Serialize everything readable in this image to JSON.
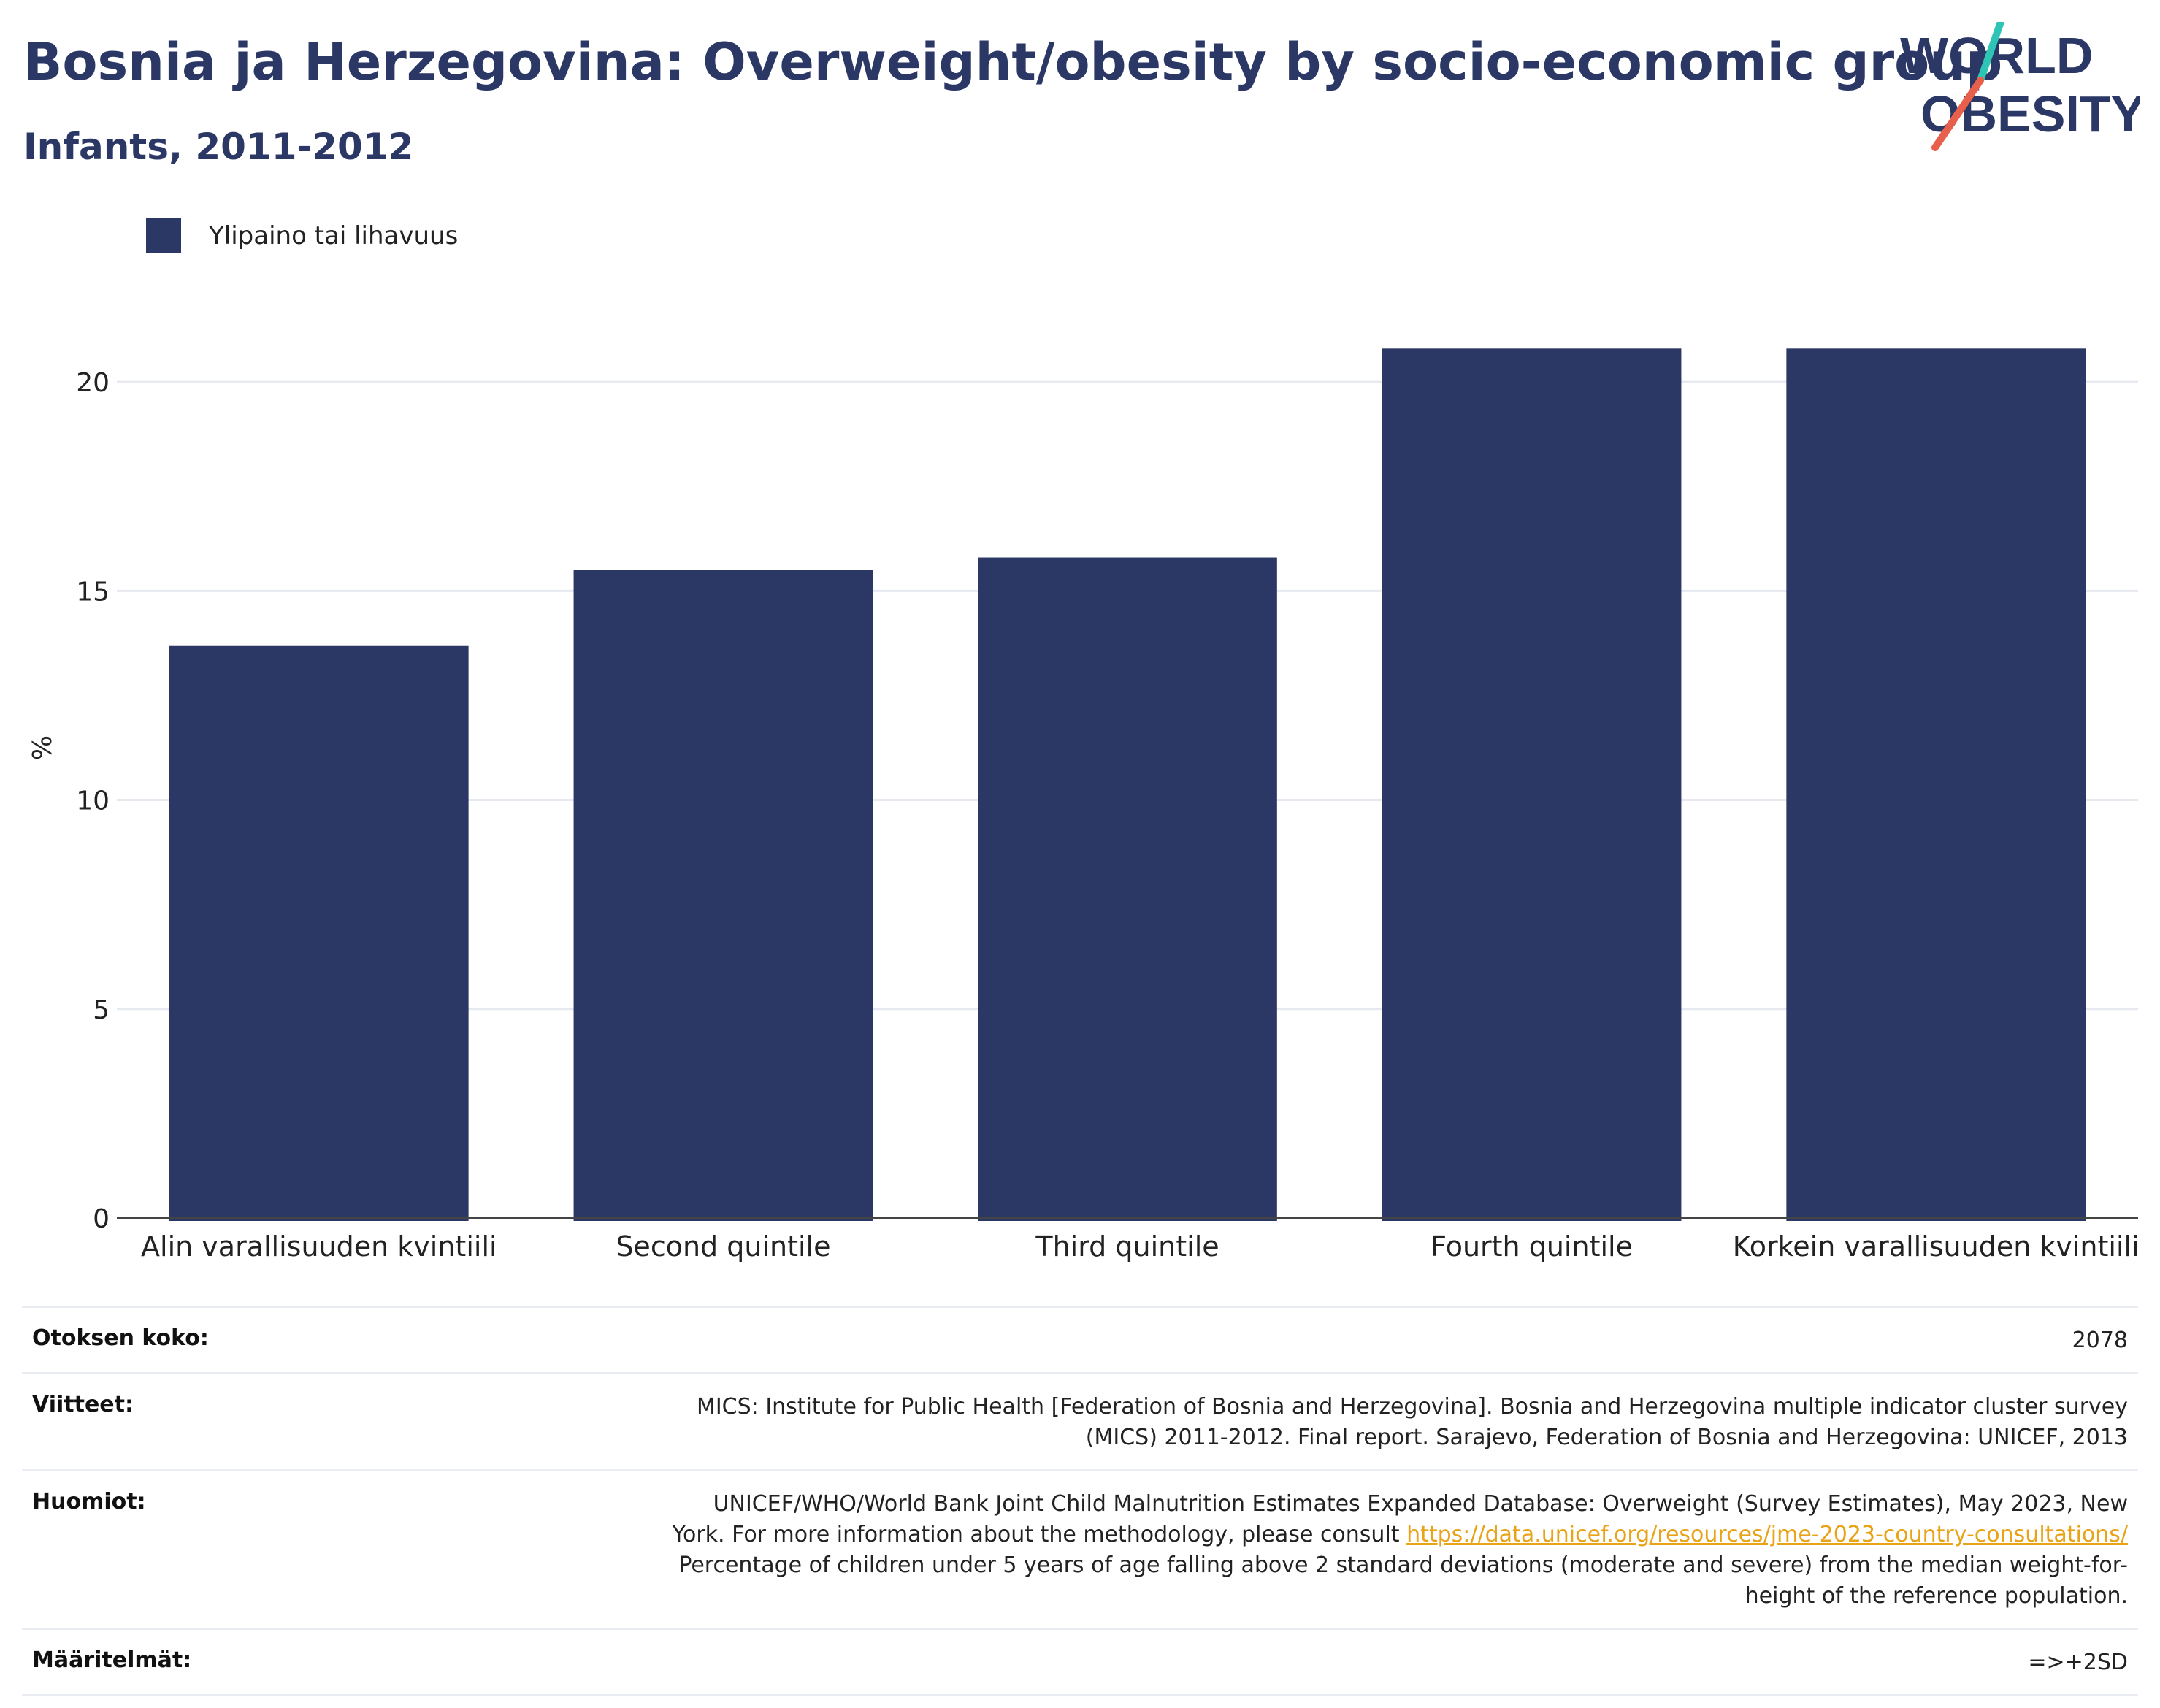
{
  "header": {
    "title": "Bosnia ja Herzegovina: Overweight/obesity by socio-economic group",
    "subtitle": "Infants, 2011-2012"
  },
  "logo": {
    "line1": "WORLD",
    "line2": "OBESITY",
    "colors": {
      "text": "#2b3764",
      "slash_teal": "#2ec4b6",
      "slash_red": "#e8604c"
    }
  },
  "legend": {
    "label": "Ylipaino tai lihavuus",
    "color": "#2b3764"
  },
  "chart_data": {
    "type": "bar",
    "categories": [
      "Alin varallisuuden kvintiili",
      "Second quintile",
      "Third quintile",
      "Fourth quintile",
      "Korkein varallisuuden kvintiili"
    ],
    "series": [
      {
        "name": "Ylipaino tai lihavuus",
        "values": [
          13.7,
          15.5,
          15.8,
          20.8,
          20.8
        ],
        "color": "#2b3764"
      }
    ],
    "ylabel": "%",
    "ylim": [
      0,
      22.5
    ],
    "yticks": [
      0,
      5,
      10,
      15,
      20
    ],
    "grid": true
  },
  "info": {
    "sample_size": {
      "label": "Otoksen koko:",
      "value": "2078"
    },
    "references": {
      "label": "Viitteet:",
      "lines": [
        "MICS: Institute for Public Health [Federation of Bosnia and Herzegovina]. Bosnia and Herzegovina multiple indicator cluster survey",
        "(MICS) 2011-2012. Final report. Sarajevo, Federation of Bosnia and Herzegovina: UNICEF, 2013"
      ]
    },
    "notes": {
      "label": "Huomiot:",
      "line1": "UNICEF/WHO/World Bank Joint Child Malnutrition Estimates Expanded Database: Overweight (Survey Estimates), May 2023, New",
      "line2_prefix": "York. For more information about the methodology, please consult ",
      "link": "https://data.unicef.org/resources/jme-2023-country-consultations/",
      "line3": "Percentage of children under 5 years of age falling above 2 standard deviations (moderate and severe) from the median weight-for-",
      "line4": "height of the reference population."
    },
    "definitions": {
      "label": "Määritelmät:",
      "value": "=>+2SD"
    }
  }
}
